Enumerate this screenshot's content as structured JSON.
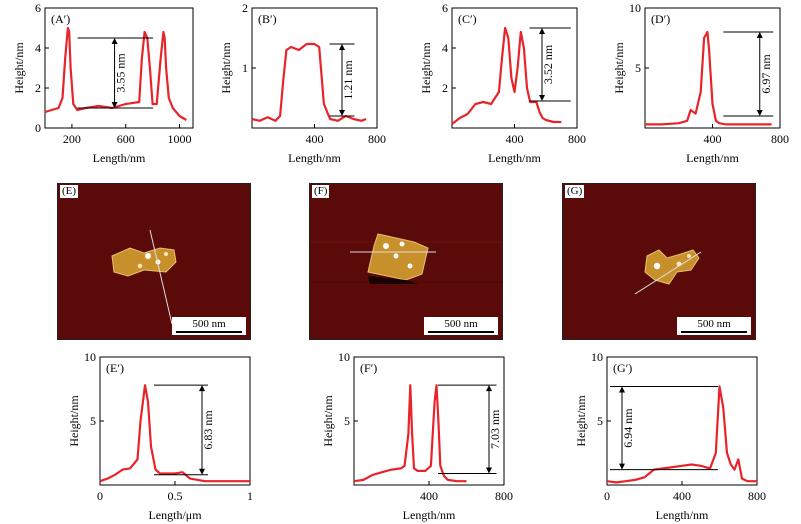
{
  "chart_data": [
    {
      "id": "A",
      "type": "line",
      "panel_label": "(A′)",
      "xlabel": "Length/nm",
      "ylabel": "Height/nm",
      "xlim": [
        0,
        1100
      ],
      "ylim": [
        0,
        6
      ],
      "xticks": [
        200,
        600,
        1000
      ],
      "yticks": [
        0,
        2,
        4,
        6
      ],
      "annotation": "3.55 nm",
      "x": [
        0,
        50,
        100,
        130,
        150,
        170,
        180,
        190,
        210,
        240,
        300,
        400,
        500,
        600,
        700,
        720,
        740,
        760,
        780,
        800,
        830,
        860,
        880,
        890,
        900,
        920,
        950,
        1000,
        1050
      ],
      "y": [
        0.8,
        0.9,
        1.0,
        1.5,
        3.5,
        5.0,
        4.8,
        3.0,
        1.2,
        0.9,
        1.0,
        1.1,
        1.0,
        1.2,
        1.3,
        3.5,
        4.8,
        4.5,
        3.0,
        1.2,
        1.2,
        3.5,
        4.8,
        4.5,
        3.0,
        1.5,
        1.0,
        0.6,
        0.4
      ]
    },
    {
      "id": "B",
      "type": "line",
      "panel_label": "(B′)",
      "xlabel": "Length/nm",
      "ylabel": "Height/nm",
      "xlim": [
        0,
        800
      ],
      "ylim": [
        0,
        2
      ],
      "xticks": [
        400,
        800
      ],
      "yticks": [
        1,
        2
      ],
      "annotation": "1.21 nm",
      "x": [
        0,
        50,
        100,
        150,
        180,
        200,
        220,
        250,
        300,
        350,
        400,
        430,
        460,
        500,
        550,
        600,
        650,
        700,
        730
      ],
      "y": [
        0.15,
        0.12,
        0.18,
        0.12,
        0.2,
        0.8,
        1.3,
        1.35,
        1.3,
        1.4,
        1.4,
        1.35,
        0.4,
        0.15,
        0.12,
        0.2,
        0.15,
        0.12,
        0.15
      ]
    },
    {
      "id": "C",
      "type": "line",
      "panel_label": "(C′)",
      "xlabel": "Length/nm",
      "ylabel": "Height/nm",
      "xlim": [
        0,
        800
      ],
      "ylim": [
        0,
        6
      ],
      "xticks": [
        400,
        800
      ],
      "yticks": [
        2,
        4,
        6
      ],
      "annotation": "3.52 nm",
      "x": [
        0,
        50,
        100,
        150,
        200,
        250,
        300,
        320,
        340,
        360,
        380,
        400,
        420,
        440,
        460,
        480,
        500,
        540,
        560,
        580,
        600,
        650,
        700
      ],
      "y": [
        0.2,
        0.5,
        0.7,
        1.2,
        1.3,
        1.2,
        1.8,
        3.5,
        5.0,
        4.5,
        2.5,
        1.8,
        3.0,
        4.8,
        4.0,
        2.0,
        1.3,
        1.3,
        0.8,
        0.5,
        0.4,
        0.3,
        0.3
      ]
    },
    {
      "id": "D",
      "type": "line",
      "panel_label": "(D′)",
      "xlabel": "Length/nm",
      "ylabel": "Height/nm",
      "xlim": [
        0,
        800
      ],
      "ylim": [
        0,
        10
      ],
      "xticks": [
        400,
        800
      ],
      "yticks": [
        5,
        10
      ],
      "annotation": "6.97 nm",
      "x": [
        0,
        100,
        200,
        250,
        270,
        300,
        330,
        350,
        370,
        380,
        400,
        420,
        440,
        480,
        550,
        650,
        750
      ],
      "y": [
        0.3,
        0.3,
        0.4,
        0.6,
        1.5,
        1.2,
        3.0,
        7.5,
        8.0,
        6.5,
        2.0,
        0.6,
        0.4,
        0.3,
        0.3,
        0.3,
        0.3
      ]
    },
    {
      "id": "E",
      "type": "line",
      "panel_label": "(E′)",
      "xlabel": "Length/μm",
      "ylabel": "Height/nm",
      "xlim": [
        0,
        1.0
      ],
      "ylim": [
        0,
        10
      ],
      "xticks": [
        0,
        0.5,
        1.0
      ],
      "yticks": [
        5,
        10
      ],
      "annotation": "6.83 nm",
      "x": [
        0,
        0.05,
        0.1,
        0.15,
        0.2,
        0.25,
        0.27,
        0.3,
        0.32,
        0.34,
        0.37,
        0.4,
        0.45,
        0.5,
        0.55,
        0.6,
        0.7,
        0.8,
        0.9,
        1.0
      ],
      "y": [
        0.3,
        0.5,
        0.8,
        1.2,
        1.3,
        2.0,
        5.0,
        7.8,
        6.5,
        3.0,
        1.2,
        0.9,
        0.9,
        0.9,
        1.0,
        0.5,
        0.3,
        0.3,
        0.3,
        0.3
      ]
    },
    {
      "id": "F",
      "type": "line",
      "panel_label": "(F′)",
      "xlabel": "Length/nm",
      "ylabel": "Height/nm",
      "xlim": [
        0,
        800
      ],
      "ylim": [
        0,
        10
      ],
      "xticks": [
        400,
        800
      ],
      "yticks": [
        5,
        10
      ],
      "annotation": "7.03 nm",
      "x": [
        0,
        50,
        100,
        150,
        200,
        250,
        270,
        290,
        300,
        310,
        320,
        340,
        380,
        410,
        430,
        440,
        450,
        460,
        480,
        500,
        550,
        600
      ],
      "y": [
        0.3,
        0.4,
        0.8,
        1.0,
        1.2,
        1.3,
        1.5,
        4.0,
        7.8,
        4.0,
        1.3,
        1.1,
        1.1,
        1.5,
        6.5,
        7.8,
        5.0,
        1.5,
        0.7,
        0.4,
        0.3,
        0.3
      ]
    },
    {
      "id": "G",
      "type": "line",
      "panel_label": "(G′)",
      "xlabel": "Length/nm",
      "ylabel": "Height/nm",
      "xlim": [
        0,
        800
      ],
      "ylim": [
        0,
        10
      ],
      "xticks": [
        0,
        400,
        800
      ],
      "yticks": [
        5,
        10
      ],
      "annotation": "6.94 nm",
      "x": [
        0,
        50,
        100,
        150,
        200,
        250,
        300,
        350,
        400,
        450,
        500,
        550,
        580,
        600,
        620,
        640,
        660,
        680,
        700,
        720,
        750,
        800
      ],
      "y": [
        0.3,
        0.2,
        0.3,
        0.4,
        0.6,
        1.2,
        1.3,
        1.4,
        1.5,
        1.6,
        1.5,
        1.3,
        2.5,
        7.7,
        6.0,
        2.5,
        1.6,
        1.2,
        2.0,
        0.5,
        0.3,
        0.3
      ]
    }
  ],
  "afm_images": [
    {
      "id": "E",
      "label": "(E)",
      "scale": "500 nm"
    },
    {
      "id": "F",
      "label": "(F)",
      "scale": "500 nm"
    },
    {
      "id": "G",
      "label": "(G)",
      "scale": "500 nm"
    }
  ],
  "colors": {
    "trace": "#e8242b",
    "afm_bg": "#5a0a08",
    "flake": "#c8902a"
  }
}
